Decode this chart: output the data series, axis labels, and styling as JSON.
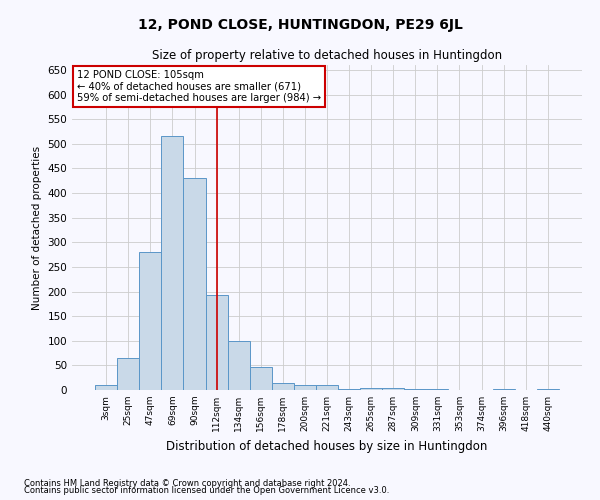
{
  "title": "12, POND CLOSE, HUNTINGDON, PE29 6JL",
  "subtitle": "Size of property relative to detached houses in Huntingdon",
  "xlabel": "Distribution of detached houses by size in Huntingdon",
  "ylabel": "Number of detached properties",
  "footnote1": "Contains HM Land Registry data © Crown copyright and database right 2024.",
  "footnote2": "Contains public sector information licensed under the Open Government Licence v3.0.",
  "categories": [
    "3sqm",
    "25sqm",
    "47sqm",
    "69sqm",
    "90sqm",
    "112sqm",
    "134sqm",
    "156sqm",
    "178sqm",
    "200sqm",
    "221sqm",
    "243sqm",
    "265sqm",
    "287sqm",
    "309sqm",
    "331sqm",
    "353sqm",
    "374sqm",
    "396sqm",
    "418sqm",
    "440sqm"
  ],
  "values": [
    10,
    65,
    280,
    515,
    430,
    193,
    100,
    46,
    15,
    10,
    10,
    2,
    5,
    5,
    2,
    2,
    0,
    0,
    3,
    0,
    2
  ],
  "bar_color": "#c9d9e8",
  "bar_edge_color": "#5a96c8",
  "background_color": "#f8f8ff",
  "grid_color": "#cccccc",
  "annotation_box_color": "#cc0000",
  "annotation_line_color": "#cc0000",
  "annotation_text_line1": "12 POND CLOSE: 105sqm",
  "annotation_text_line2": "← 40% of detached houses are smaller (671)",
  "annotation_text_line3": "59% of semi-detached houses are larger (984) →",
  "red_line_x": 5.0,
  "ylim": [
    0,
    660
  ],
  "yticks": [
    0,
    50,
    100,
    150,
    200,
    250,
    300,
    350,
    400,
    450,
    500,
    550,
    600,
    650
  ]
}
